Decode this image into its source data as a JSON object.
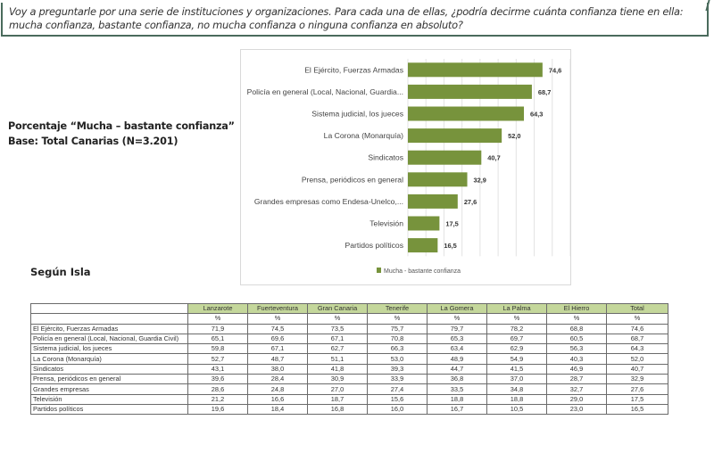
{
  "question": {
    "line1": "Voy a preguntarle por una serie de instituciones y organizaciones. Para cada una de ellas, ¿podría decirme cuánta confianza tiene en ella:",
    "line2": "mucha confianza, bastante confianza, no mucha confianza o ninguna confianza en absoluto?"
  },
  "subtitle": {
    "line1": "Porcentaje “Mucha – bastante confianza”",
    "line2": "Base: Total Canarias  (N=3.201)"
  },
  "section_label": "Según Isla",
  "colors": {
    "bar": "#77933c",
    "header_bg": "#c4d79b",
    "border": "#4a6b5c"
  },
  "chart_data": {
    "type": "bar",
    "orientation": "horizontal",
    "categories": [
      "El Ejército, Fuerzas Armadas",
      "Policía en general (Local, Nacional, Guardia...",
      "Sistema judicial, los jueces",
      "La Corona (Monarquía)",
      "Sindicatos",
      "Prensa, periódicos en general",
      "Grandes empresas como Endesa-Unelco,...",
      "Televisión",
      "Partidos políticos"
    ],
    "series": [
      {
        "name": "Mucha - bastante confianza",
        "values": [
          74.6,
          68.7,
          64.3,
          52.0,
          40.7,
          32.9,
          27.6,
          17.5,
          16.5
        ],
        "labels": [
          "74,6",
          "68,7",
          "64,3",
          "52,0",
          "40,7",
          "32,9",
          "27,6",
          "17,5",
          "16,5"
        ]
      }
    ],
    "xlim": [
      0,
      90
    ],
    "grid": true,
    "legend": "bottom",
    "title": "",
    "xlabel": "",
    "ylabel": ""
  },
  "table": {
    "columns": [
      "Lanzarote",
      "Fuerteventura",
      "Gran Canaria",
      "Tenerife",
      "La Gomera",
      "La Palma",
      "El Hierro",
      "Total"
    ],
    "unit_row": [
      "%",
      "%",
      "%",
      "%",
      "%",
      "%",
      "%",
      "%"
    ],
    "rows": [
      {
        "label": "El Ejército, Fuerzas Armadas",
        "values": [
          "71,9",
          "74,5",
          "73,5",
          "75,7",
          "79,7",
          "78,2",
          "68,8",
          "74,6"
        ]
      },
      {
        "label": "Policía en general (Local, Nacional, Guardia Civil)",
        "values": [
          "65,1",
          "69,6",
          "67,1",
          "70,8",
          "65,3",
          "69,7",
          "60,5",
          "68,7"
        ]
      },
      {
        "label": "Sistema judicial, los jueces",
        "values": [
          "59,8",
          "67,1",
          "62,7",
          "66,3",
          "63,4",
          "62,9",
          "56,3",
          "64,3"
        ]
      },
      {
        "label": "La Corona (Monarquía)",
        "values": [
          "52,7",
          "48,7",
          "51,1",
          "53,0",
          "48,9",
          "54,9",
          "40,3",
          "52,0"
        ]
      },
      {
        "label": "Sindicatos",
        "values": [
          "43,1",
          "38,0",
          "41,8",
          "39,3",
          "44,7",
          "41,5",
          "46,9",
          "40,7"
        ]
      },
      {
        "label": "Prensa, periódicos en general",
        "values": [
          "39,6",
          "28,4",
          "30,9",
          "33,9",
          "36,8",
          "37,0",
          "28,7",
          "32,9"
        ]
      },
      {
        "label": "Grandes empresas",
        "values": [
          "28,6",
          "24,8",
          "27,0",
          "27,4",
          "33,5",
          "34,8",
          "32,7",
          "27,6"
        ]
      },
      {
        "label": "Televisión",
        "values": [
          "21,2",
          "16,6",
          "18,7",
          "15,6",
          "18,8",
          "18,8",
          "29,0",
          "17,5"
        ]
      },
      {
        "label": "Partidos políticos",
        "values": [
          "19,6",
          "18,4",
          "16,8",
          "16,0",
          "16,7",
          "10,5",
          "23,0",
          "16,5"
        ]
      }
    ]
  }
}
